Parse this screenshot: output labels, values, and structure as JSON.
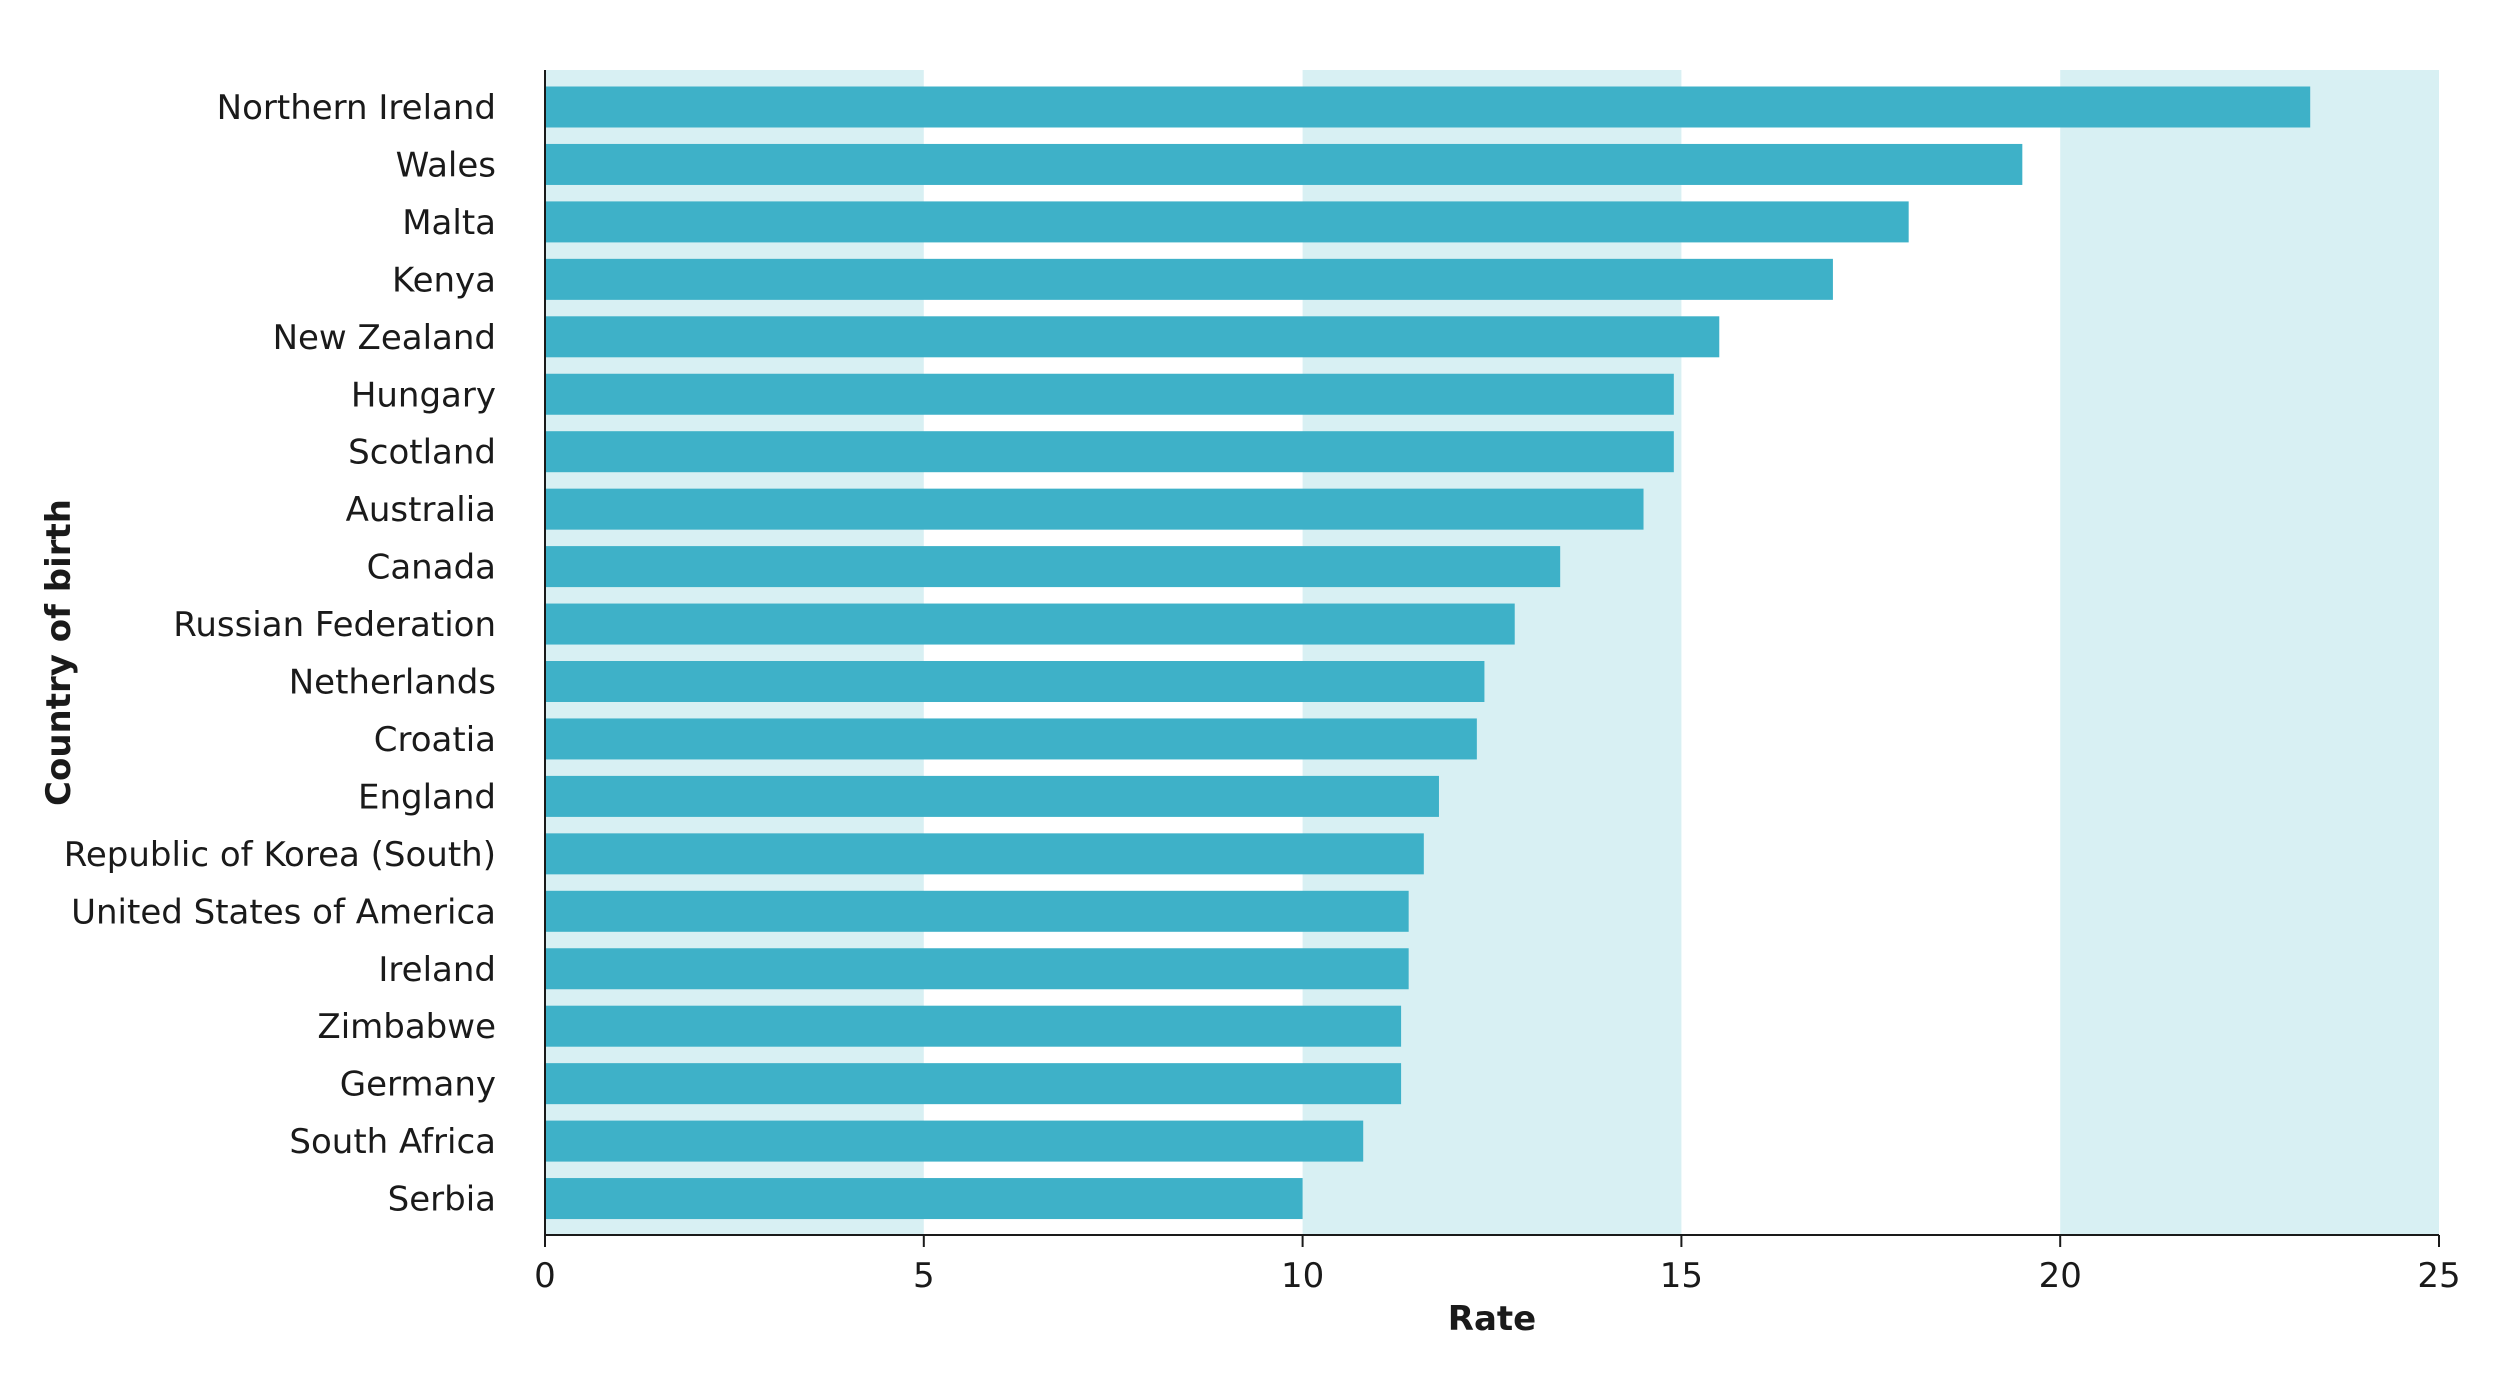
{
  "chart_data": {
    "type": "bar",
    "orientation": "horizontal",
    "categories": [
      "Northern Ireland",
      "Wales",
      "Malta",
      "Kenya",
      "New Zealand",
      "Hungary",
      "Scotland",
      "Australia",
      "Canada",
      "Russian Federation",
      "Netherlands",
      "Croatia",
      "England",
      "Republic of Korea (South)",
      "United States of America",
      "Ireland",
      "Zimbabwe",
      "Germany",
      "South Africa",
      "Serbia"
    ],
    "values": [
      23.3,
      19.5,
      18.0,
      17.0,
      15.5,
      14.9,
      14.9,
      14.5,
      13.4,
      12.8,
      12.4,
      12.3,
      11.8,
      11.6,
      11.4,
      11.4,
      11.3,
      11.3,
      10.8,
      10.0
    ],
    "xlabel": "Rate",
    "ylabel": "Country of birth",
    "xlim": [
      0,
      25
    ],
    "xticks": [
      "0",
      "5",
      "10",
      "15",
      "20",
      "25"
    ],
    "band_color": "#d8f0f3",
    "bar_color": "#3eb1c8",
    "grid": false
  }
}
